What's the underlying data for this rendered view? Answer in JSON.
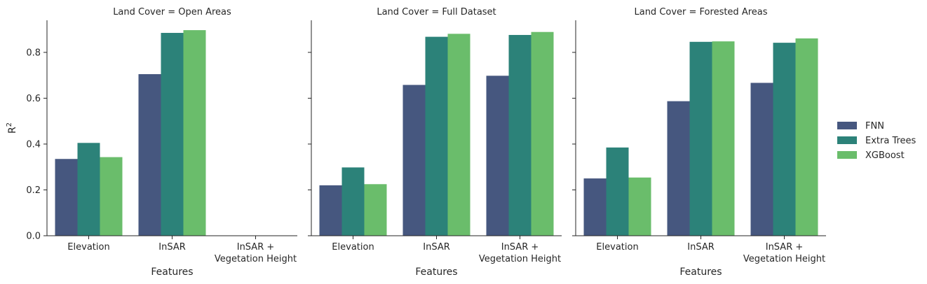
{
  "chart_data": {
    "type": "bar",
    "xlabel": "Features",
    "ylabel": "R²",
    "ylim": [
      0,
      0.94
    ],
    "yticks": [
      "0.0",
      "0.2",
      "0.4",
      "0.6",
      "0.8"
    ],
    "categories": [
      [
        "Elevation"
      ],
      [
        "InSAR"
      ],
      [
        "InSAR +",
        "Vegetation Height"
      ]
    ],
    "series_meta": [
      {
        "name": "FNN",
        "color": "#46577f"
      },
      {
        "name": "Extra Trees",
        "color": "#2c8279"
      },
      {
        "name": "XGBoost",
        "color": "#6abd6b"
      }
    ],
    "legend_position": "right",
    "grid": false,
    "facets": [
      {
        "title": "Land Cover = Open Areas",
        "series": [
          {
            "name": "FNN",
            "values": [
              0.335,
              0.705,
              null
            ]
          },
          {
            "name": "Extra Trees",
            "values": [
              0.405,
              0.885,
              null
            ]
          },
          {
            "name": "XGBoost",
            "values": [
              0.343,
              0.897,
              null
            ]
          }
        ]
      },
      {
        "title": "Land Cover = Full Dataset",
        "series": [
          {
            "name": "FNN",
            "values": [
              0.22,
              0.658,
              0.698
            ]
          },
          {
            "name": "Extra Trees",
            "values": [
              0.298,
              0.868,
              0.876
            ]
          },
          {
            "name": "XGBoost",
            "values": [
              0.225,
              0.881,
              0.889
            ]
          }
        ]
      },
      {
        "title": "Land Cover = Forested Areas",
        "series": [
          {
            "name": "FNN",
            "values": [
              0.25,
              0.587,
              0.667
            ]
          },
          {
            "name": "Extra Trees",
            "values": [
              0.385,
              0.846,
              0.842
            ]
          },
          {
            "name": "XGBoost",
            "values": [
              0.254,
              0.848,
              0.861
            ]
          }
        ]
      }
    ]
  }
}
